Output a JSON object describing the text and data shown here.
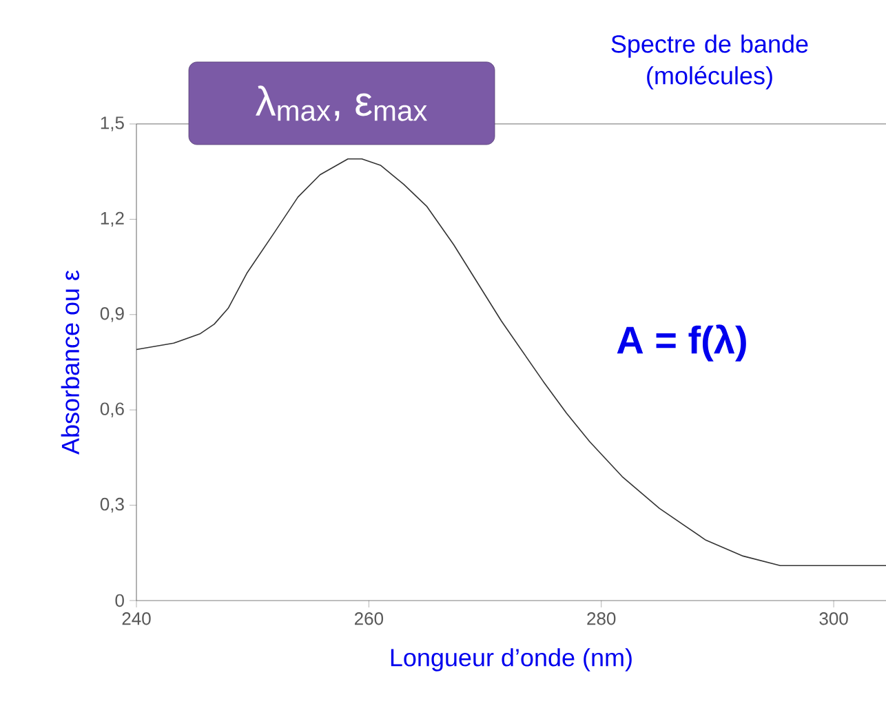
{
  "chart_data": {
    "type": "line",
    "xlabel": "Longueur d’onde (nm)",
    "ylabel": "Absorbance ou ε",
    "annotations": [
      "λ$_{max}$, ε$_{max}$",
      "Spectre de bande (molécules)",
      "A = f(λ)"
    ],
    "x": [
      240,
      243.2,
      245.5,
      246.7,
      247.9,
      249.5,
      251.9,
      253.9,
      255.8,
      258.2,
      259.4,
      261,
      263,
      265,
      267.3,
      271.4,
      275,
      277,
      279,
      281.8,
      285,
      289,
      292.2,
      295.4,
      304.5
    ],
    "values": [
      0.79,
      0.81,
      0.84,
      0.87,
      0.92,
      1.03,
      1.16,
      1.27,
      1.34,
      1.39,
      1.39,
      1.37,
      1.31,
      1.24,
      1.12,
      0.88,
      0.69,
      0.59,
      0.5,
      0.39,
      0.29,
      0.19,
      0.14,
      0.11,
      0.11
    ],
    "color": "#333333",
    "xlim": [
      240,
      304.5
    ],
    "ylim": [
      0,
      1.5
    ],
    "xticks": [
      240,
      260,
      280,
      300
    ],
    "yticks": [
      0,
      {
        "value": 0.3,
        "label": "0,3"
      },
      {
        "value": 0.6,
        "label": "0,6"
      },
      {
        "value": 0.9,
        "label": "0,9"
      },
      {
        "value": 1.2,
        "label": "1,2"
      },
      {
        "value": 1.5,
        "label": "1,5"
      }
    ]
  }
}
